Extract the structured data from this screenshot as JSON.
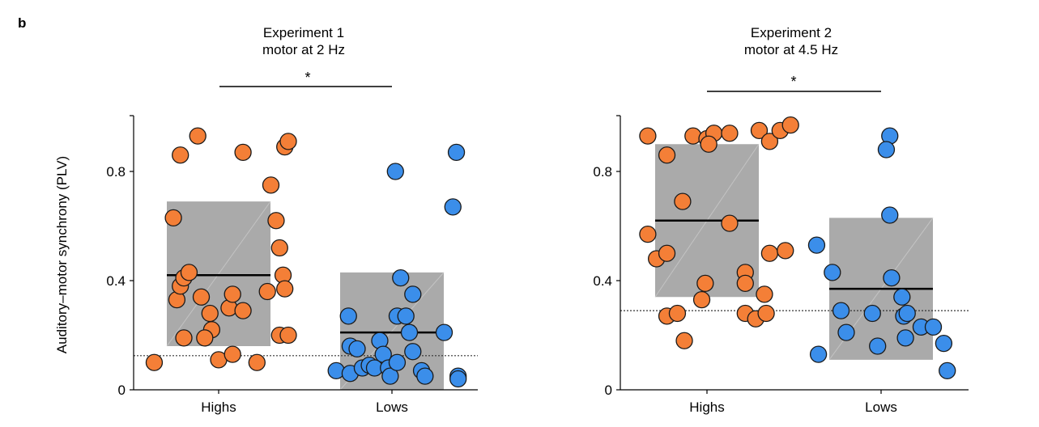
{
  "panel_label": "b",
  "colors": {
    "highs": "#f47f37",
    "lows": "#3b8eea",
    "box": "#aaaaaa",
    "outline": "#1a1a1a"
  },
  "chart_data": [
    {
      "type": "scatter",
      "title": "Experiment 1",
      "subtitle": "motor at 2 Hz",
      "ylabel": "Auditory–motor synchrony (PLV)",
      "ylim": [
        0,
        1.0
      ],
      "yticks": [
        "0",
        "0.4",
        "0.8"
      ],
      "yticks_values": [
        0,
        0.4,
        0.8
      ],
      "categories": [
        "Highs",
        "Lows"
      ],
      "significance": "*",
      "chance_level": 0.125,
      "boxes": [
        {
          "group": "Highs",
          "q1": 0.16,
          "median": 0.42,
          "q3": 0.69
        },
        {
          "group": "Lows",
          "q1": 0.0,
          "median": 0.21,
          "q3": 0.43
        }
      ],
      "series": [
        {
          "name": "Highs",
          "points": [
            [
              -0.37,
              0.1
            ],
            [
              -0.26,
              0.63
            ],
            [
              -0.22,
              0.86
            ],
            [
              -0.12,
              0.93
            ],
            [
              -0.24,
              0.33
            ],
            [
              -0.22,
              0.38
            ],
            [
              -0.2,
              0.41
            ],
            [
              -0.17,
              0.43
            ],
            [
              -0.1,
              0.34
            ],
            [
              -0.05,
              0.28
            ],
            [
              -0.04,
              0.22
            ],
            [
              -0.08,
              0.19
            ],
            [
              -0.2,
              0.19
            ],
            [
              0.0,
              0.11
            ],
            [
              0.08,
              0.13
            ],
            [
              0.06,
              0.3
            ],
            [
              0.08,
              0.35
            ],
            [
              0.14,
              0.29
            ],
            [
              0.22,
              0.1
            ],
            [
              0.14,
              0.87
            ],
            [
              0.3,
              0.75
            ],
            [
              0.33,
              0.62
            ],
            [
              0.35,
              0.52
            ],
            [
              0.37,
              0.42
            ],
            [
              0.38,
              0.37
            ],
            [
              0.28,
              0.36
            ],
            [
              0.35,
              0.2
            ],
            [
              0.4,
              0.2
            ],
            [
              0.38,
              0.89
            ],
            [
              0.4,
              0.91
            ]
          ]
        },
        {
          "name": "Lows",
          "points": [
            [
              -0.32,
              0.07
            ],
            [
              -0.25,
              0.27
            ],
            [
              -0.24,
              0.16
            ],
            [
              -0.24,
              0.06
            ],
            [
              -0.2,
              0.15
            ],
            [
              -0.17,
              0.08
            ],
            [
              -0.13,
              0.09
            ],
            [
              -0.1,
              0.08
            ],
            [
              -0.07,
              0.18
            ],
            [
              -0.05,
              0.13
            ],
            [
              -0.02,
              0.08
            ],
            [
              -0.01,
              0.05
            ],
            [
              0.03,
              0.1
            ],
            [
              0.03,
              0.27
            ],
            [
              0.05,
              0.41
            ],
            [
              0.08,
              0.27
            ],
            [
              0.1,
              0.21
            ],
            [
              0.12,
              0.14
            ],
            [
              0.12,
              0.35
            ],
            [
              0.02,
              0.8
            ],
            [
              0.17,
              0.07
            ],
            [
              0.19,
              0.05
            ],
            [
              0.3,
              0.21
            ],
            [
              0.35,
              0.67
            ],
            [
              0.37,
              0.87
            ],
            [
              0.38,
              0.05
            ],
            [
              0.38,
              0.04
            ]
          ]
        }
      ]
    },
    {
      "type": "scatter",
      "title": "Experiment 2",
      "subtitle": "motor at 4.5 Hz",
      "ylabel": "",
      "ylim": [
        0,
        1.0
      ],
      "yticks": [
        "0",
        "0.4",
        "0.8"
      ],
      "yticks_values": [
        0,
        0.4,
        0.8
      ],
      "categories": [
        "Highs",
        "Lows"
      ],
      "significance": "*",
      "chance_level": 0.29,
      "boxes": [
        {
          "group": "Highs",
          "q1": 0.34,
          "median": 0.62,
          "q3": 0.9
        },
        {
          "group": "Lows",
          "q1": 0.11,
          "median": 0.37,
          "q3": 0.63
        }
      ],
      "series": [
        {
          "name": "Highs",
          "points": [
            [
              -0.34,
              0.93
            ],
            [
              -0.23,
              0.86
            ],
            [
              -0.34,
              0.57
            ],
            [
              -0.29,
              0.48
            ],
            [
              -0.23,
              0.5
            ],
            [
              -0.14,
              0.69
            ],
            [
              -0.23,
              0.27
            ],
            [
              -0.17,
              0.28
            ],
            [
              -0.13,
              0.18
            ],
            [
              -0.03,
              0.33
            ],
            [
              -0.01,
              0.39
            ],
            [
              -0.08,
              0.93
            ],
            [
              0.0,
              0.92
            ],
            [
              0.04,
              0.94
            ],
            [
              0.01,
              0.9
            ],
            [
              0.13,
              0.94
            ],
            [
              0.13,
              0.61
            ],
            [
              0.22,
              0.43
            ],
            [
              0.22,
              0.39
            ],
            [
              0.22,
              0.28
            ],
            [
              0.28,
              0.26
            ],
            [
              0.33,
              0.35
            ],
            [
              0.34,
              0.28
            ],
            [
              0.3,
              0.95
            ],
            [
              0.36,
              0.91
            ],
            [
              0.42,
              0.95
            ],
            [
              0.48,
              0.97
            ],
            [
              0.36,
              0.5
            ],
            [
              0.45,
              0.51
            ]
          ]
        },
        {
          "name": "Lows",
          "points": [
            [
              -0.37,
              0.53
            ],
            [
              -0.28,
              0.43
            ],
            [
              -0.23,
              0.29
            ],
            [
              -0.2,
              0.21
            ],
            [
              -0.36,
              0.13
            ],
            [
              -0.02,
              0.16
            ],
            [
              0.05,
              0.93
            ],
            [
              0.03,
              0.88
            ],
            [
              0.05,
              0.64
            ],
            [
              0.06,
              0.41
            ],
            [
              0.12,
              0.34
            ],
            [
              0.13,
              0.27
            ],
            [
              0.14,
              0.19
            ],
            [
              0.23,
              0.23
            ],
            [
              0.15,
              0.28
            ],
            [
              0.3,
              0.23
            ],
            [
              0.36,
              0.17
            ],
            [
              0.38,
              0.07
            ],
            [
              -0.05,
              0.28
            ]
          ]
        }
      ]
    }
  ]
}
